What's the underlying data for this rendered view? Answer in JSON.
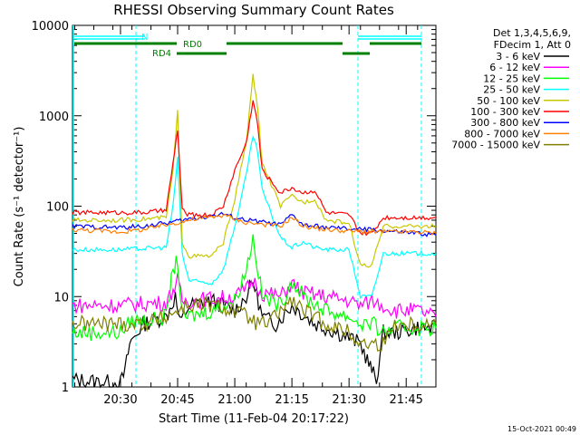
{
  "chart_data": {
    "type": "line",
    "title": "RHESSI Observing Summary Count Rates",
    "xlabel": "Start Time (11-Feb-04 20:17:22)",
    "ylabel": "Count Rate (s⁻¹ detector⁻¹)",
    "y_scale": "log",
    "ylim": [
      1,
      10000
    ],
    "xlim": [
      20.29,
      21.88
    ],
    "x_ticks": [
      20.5,
      20.75,
      21.0,
      21.25,
      21.5,
      21.75
    ],
    "x_tick_labels": [
      "20:30",
      "20:45",
      "21:00",
      "21:15",
      "21:30",
      "21:45"
    ],
    "y_ticks": [
      1,
      10,
      100,
      1000,
      10000
    ],
    "y_tick_labels": [
      "1",
      "10",
      "100",
      "1000",
      "10000"
    ],
    "legend_header": [
      "Det 1,3,4,5,6,9,",
      "FDecim 1, Att 0"
    ],
    "legend_position": "outside-right",
    "footer_date": "15-Oct-2021 00:49",
    "annotations": {
      "night_label": "N",
      "rd0_label": "RD0",
      "rd4_label": "RD4",
      "night_color": "#00ffff",
      "rd_color": "#008000"
    },
    "series": [
      {
        "name": "3 - 6 keV",
        "color": "#000000",
        "x": [
          20.29,
          20.5,
          20.52,
          20.54,
          20.6,
          20.7,
          20.74,
          20.76,
          20.8,
          20.9,
          21.0,
          21.05,
          21.08,
          21.12,
          21.18,
          21.25,
          21.35,
          21.45,
          21.5,
          21.55,
          21.58,
          21.6,
          21.62,
          21.65,
          21.7,
          21.8,
          21.88
        ],
        "y": [
          1.2,
          1.1,
          1.5,
          3,
          5,
          6,
          10,
          5,
          8,
          9,
          7,
          10,
          15,
          6,
          5,
          8,
          5,
          4,
          3.5,
          3,
          2,
          1.5,
          1.2,
          4,
          4,
          4.5,
          4.5
        ]
      },
      {
        "name": "6 - 12 keV",
        "color": "#ff00ff",
        "x": [
          20.29,
          20.5,
          20.55,
          20.65,
          20.7,
          20.73,
          20.75,
          20.77,
          20.8,
          20.9,
          21.0,
          21.05,
          21.08,
          21.12,
          21.2,
          21.25,
          21.3,
          21.4,
          21.5,
          21.55,
          21.6,
          21.65,
          21.7,
          21.8,
          21.88
        ],
        "y": [
          8,
          8,
          8.2,
          8.5,
          8.5,
          12,
          15,
          9,
          9,
          9.5,
          10,
          12,
          15,
          11,
          10,
          14,
          11,
          10,
          9,
          8,
          9,
          8,
          7,
          7,
          6
        ]
      },
      {
        "name": "12 - 25 keV",
        "color": "#00ff00",
        "x": [
          20.29,
          20.5,
          20.55,
          20.65,
          20.7,
          20.73,
          20.75,
          20.77,
          20.8,
          20.9,
          21.0,
          21.05,
          21.08,
          21.12,
          21.2,
          21.25,
          21.3,
          21.4,
          21.5,
          21.55,
          21.6,
          21.65,
          21.7,
          21.8,
          21.88
        ],
        "y": [
          4,
          4,
          5.5,
          5.5,
          6,
          20,
          25,
          6,
          6,
          7,
          9,
          20,
          45,
          10,
          8,
          15,
          10,
          7,
          6,
          5,
          5,
          4,
          4.5,
          4.5,
          4.5
        ]
      },
      {
        "name": "25 - 50 keV",
        "color": "#00ffff",
        "x": [
          20.29,
          20.5,
          20.6,
          20.7,
          20.73,
          20.75,
          20.77,
          20.8,
          20.9,
          20.95,
          21.0,
          21.05,
          21.08,
          21.1,
          21.12,
          21.2,
          21.25,
          21.3,
          21.35,
          21.4,
          21.5,
          21.55,
          21.6,
          21.65,
          21.7,
          21.8,
          21.88
        ],
        "y": [
          33,
          33,
          34,
          35,
          100,
          350,
          30,
          15,
          14,
          20,
          60,
          220,
          600,
          400,
          150,
          45,
          35,
          40,
          35,
          33,
          33,
          10,
          10,
          30,
          30,
          30,
          30
        ]
      },
      {
        "name": "50 - 100 keV",
        "color": "#c8c800",
        "x": [
          20.29,
          20.5,
          20.6,
          20.7,
          20.73,
          20.75,
          20.77,
          20.8,
          20.9,
          20.95,
          21.0,
          21.05,
          21.08,
          21.1,
          21.12,
          21.2,
          21.25,
          21.3,
          21.35,
          21.4,
          21.5,
          21.55,
          21.6,
          21.65,
          21.7,
          21.8,
          21.88
        ],
        "y": [
          70,
          70,
          72,
          75,
          250,
          1100,
          40,
          28,
          28,
          40,
          120,
          500,
          2800,
          1200,
          300,
          100,
          130,
          110,
          120,
          70,
          65,
          22,
          22,
          60,
          60,
          60,
          60
        ]
      },
      {
        "name": "100 - 300 keV",
        "color": "#ff0000",
        "x": [
          20.29,
          20.5,
          20.6,
          20.7,
          20.73,
          20.75,
          20.77,
          20.8,
          20.9,
          20.95,
          21.0,
          21.05,
          21.08,
          21.1,
          21.12,
          21.2,
          21.25,
          21.3,
          21.35,
          21.4,
          21.5,
          21.55,
          21.6,
          21.65,
          21.7,
          21.8,
          21.88
        ],
        "y": [
          85,
          85,
          85,
          90,
          300,
          700,
          90,
          80,
          80,
          100,
          250,
          500,
          1500,
          800,
          250,
          140,
          160,
          140,
          150,
          85,
          80,
          50,
          50,
          75,
          75,
          75,
          75
        ]
      },
      {
        "name": "300 - 800 keV",
        "color": "#0000ff",
        "x": [
          20.29,
          20.5,
          20.6,
          20.7,
          20.8,
          20.9,
          20.95,
          21.0,
          21.05,
          21.1,
          21.15,
          21.2,
          21.25,
          21.3,
          21.4,
          21.5,
          21.6,
          21.7,
          21.8,
          21.88
        ],
        "y": [
          60,
          58,
          60,
          65,
          72,
          78,
          82,
          75,
          70,
          68,
          65,
          62,
          80,
          62,
          58,
          56,
          55,
          52,
          50,
          48
        ]
      },
      {
        "name": "800 - 7000 keV",
        "color": "#ff8000",
        "x": [
          20.29,
          20.5,
          20.6,
          20.7,
          20.8,
          20.9,
          20.95,
          21.0,
          21.05,
          21.1,
          21.15,
          21.2,
          21.25,
          21.3,
          21.4,
          21.5,
          21.6,
          21.7,
          21.8,
          21.88
        ],
        "y": [
          55,
          52,
          55,
          62,
          70,
          76,
          80,
          72,
          66,
          64,
          62,
          60,
          75,
          60,
          55,
          53,
          52,
          52,
          52,
          50
        ]
      },
      {
        "name": "7000 - 15000 keV",
        "color": "#808000",
        "x": [
          20.29,
          20.5,
          20.6,
          20.7,
          20.75,
          20.8,
          20.9,
          21.0,
          21.05,
          21.1,
          21.15,
          21.2,
          21.25,
          21.3,
          21.4,
          21.5,
          21.55,
          21.6,
          21.65,
          21.7,
          21.8,
          21.88
        ],
        "y": [
          5,
          5,
          5,
          6,
          7,
          8,
          8,
          7,
          6,
          5,
          5,
          7,
          9,
          7,
          5,
          4,
          3,
          3,
          3,
          5,
          5,
          5
        ]
      }
    ]
  }
}
